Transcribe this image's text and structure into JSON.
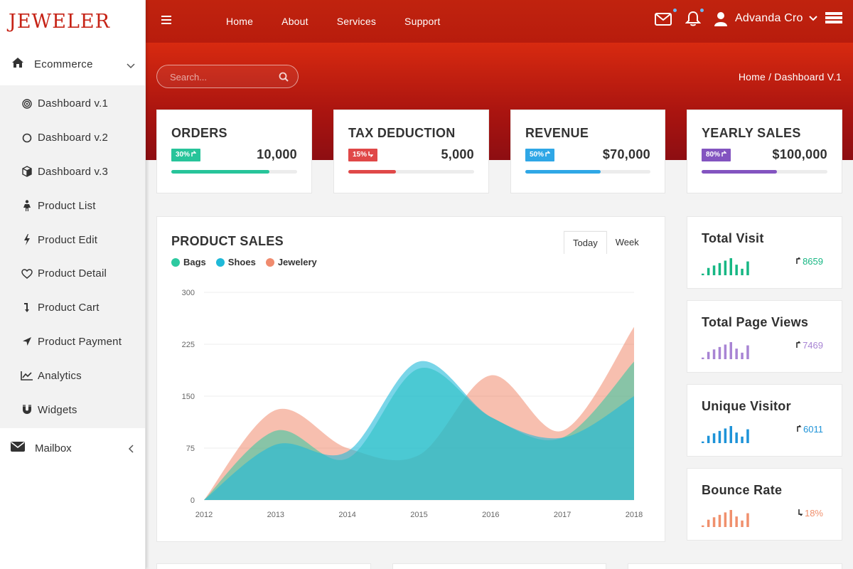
{
  "brand": "JEWELER",
  "sidebar": {
    "section": "Ecommerce",
    "items": [
      {
        "label": "Dashboard v.1",
        "icon": "target-icon"
      },
      {
        "label": "Dashboard v.2",
        "icon": "circle-icon"
      },
      {
        "label": "Dashboard v.3",
        "icon": "cube-icon"
      },
      {
        "label": "Product List",
        "icon": "female-icon"
      },
      {
        "label": "Product Edit",
        "icon": "bolt-icon"
      },
      {
        "label": "Product Detail",
        "icon": "heart-icon"
      },
      {
        "label": "Product Cart",
        "icon": "level-down-icon"
      },
      {
        "label": "Product Payment",
        "icon": "location-arrow-icon"
      },
      {
        "label": "Analytics",
        "icon": "line-chart-icon"
      },
      {
        "label": "Widgets",
        "icon": "magnet-icon"
      }
    ],
    "mailbox": "Mailbox"
  },
  "topnav": {
    "links": [
      "Home",
      "About",
      "Services",
      "Support"
    ],
    "user": "Advanda Cro"
  },
  "search": {
    "placeholder": "Search..."
  },
  "breadcrumb": "Home / Dashboard V.1",
  "stats": [
    {
      "title": "ORDERS",
      "badge": "30%",
      "direction": "up",
      "value": "10,000",
      "progress": 0.78,
      "color": "#27c49a"
    },
    {
      "title": "TAX DEDUCTION",
      "badge": "15%",
      "direction": "down",
      "value": "5,000",
      "progress": 0.38,
      "color": "#e04848"
    },
    {
      "title": "REVENUE",
      "badge": "50%",
      "direction": "up",
      "value": "$70,000",
      "progress": 0.6,
      "color": "#2fa7e6"
    },
    {
      "title": "YEARLY SALES",
      "badge": "80%",
      "direction": "up",
      "value": "$100,000",
      "progress": 0.6,
      "color": "#8354c0"
    }
  ],
  "product_sales": {
    "title": "PRODUCT SALES",
    "tabs": [
      "Today",
      "Week"
    ],
    "active_tab": "Today"
  },
  "chart_data": {
    "type": "area",
    "title": "PRODUCT SALES",
    "x": [
      "2012",
      "2013",
      "2014",
      "2015",
      "2016",
      "2017",
      "2018"
    ],
    "yticks": [
      0,
      75,
      150,
      225,
      300
    ],
    "ylim": [
      0,
      300
    ],
    "grid": true,
    "legend": "top-left",
    "series": [
      {
        "name": "Bags",
        "color": "#2dc9a0",
        "values": [
          0,
          100,
          60,
          190,
          120,
          90,
          200
        ]
      },
      {
        "name": "Shoes",
        "color": "#1fb9d8",
        "values": [
          0,
          80,
          70,
          200,
          120,
          90,
          150
        ]
      },
      {
        "name": "Jewelery",
        "color": "#f08b6e",
        "values": [
          0,
          130,
          75,
          65,
          180,
          100,
          250
        ]
      }
    ]
  },
  "mini_cards": [
    {
      "title": "Total Visit",
      "value": "8659",
      "direction": "up",
      "color": "#17b784",
      "bars": [
        2,
        9,
        12,
        15,
        18,
        21,
        13,
        8,
        17
      ]
    },
    {
      "title": "Total Page Views",
      "value": "7469",
      "direction": "up",
      "color": "#a884d4",
      "bars": [
        2,
        9,
        12,
        15,
        18,
        21,
        13,
        8,
        17
      ]
    },
    {
      "title": "Unique Visitor",
      "value": "6011",
      "direction": "up",
      "color": "#1e93d8",
      "bars": [
        2,
        9,
        12,
        15,
        18,
        21,
        13,
        8,
        17
      ]
    },
    {
      "title": "Bounce Rate",
      "value": "18%",
      "direction": "down",
      "color": "#f0906d",
      "bars": [
        2,
        9,
        12,
        15,
        18,
        21,
        13,
        8,
        17
      ]
    }
  ]
}
